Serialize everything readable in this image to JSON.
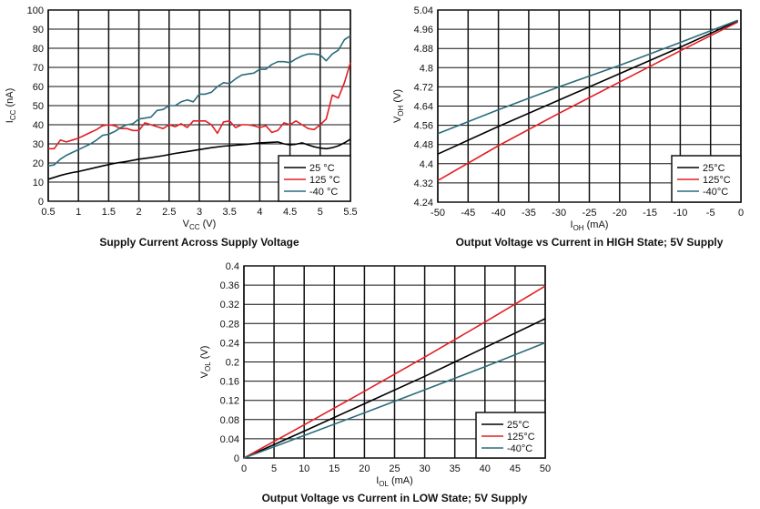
{
  "colors": {
    "25C": "#000000",
    "125C": "#e31e24",
    "-40C": "#2b6c7b"
  },
  "chart_data": [
    {
      "type": "line",
      "title": "Supply Current Across Supply Voltage",
      "xlabel": {
        "main": "V",
        "sub": "CC",
        "unit": " (V)"
      },
      "ylabel": {
        "main": "I",
        "sub": "CC",
        "unit": " (nA)"
      },
      "xlim": [
        0.5,
        5.5
      ],
      "ylim": [
        0,
        100
      ],
      "xticks": [
        "0.5",
        "1",
        "1.5",
        "2",
        "2.5",
        "3",
        "3.5",
        "4",
        "4.5",
        "5",
        "5.5"
      ],
      "yticks": [
        "0",
        "10",
        "20",
        "30",
        "40",
        "50",
        "60",
        "70",
        "80",
        "90",
        "100"
      ],
      "grid": true,
      "legend": "bottom-right",
      "series": [
        {
          "name": "25 °C",
          "color": "#000000",
          "x": [
            0.5,
            0.6,
            0.7,
            0.8,
            0.9,
            1.0,
            1.2,
            1.4,
            1.6,
            1.8,
            2.0,
            2.2,
            2.4,
            2.6,
            2.8,
            3.0,
            3.2,
            3.4,
            3.6,
            3.8,
            4.0,
            4.2,
            4.3,
            4.4,
            4.5,
            4.6,
            4.7,
            4.8,
            4.9,
            5.0,
            5.1,
            5.2,
            5.3,
            5.4,
            5.5
          ],
          "y": [
            11.5,
            12.5,
            13.5,
            14.3,
            15,
            15.5,
            17,
            18.5,
            19.8,
            20.8,
            22,
            22.8,
            23.8,
            25,
            26,
            27,
            28,
            28.8,
            29.3,
            29.8,
            30.5,
            30.8,
            31,
            30,
            29.5,
            29.8,
            30.5,
            29.5,
            28.5,
            27.8,
            27.5,
            28,
            29,
            30.5,
            32.5
          ]
        },
        {
          "name": "125 °C",
          "color": "#e31e24",
          "x": [
            0.5,
            0.6,
            0.7,
            0.8,
            0.9,
            1.0,
            1.1,
            1.2,
            1.3,
            1.4,
            1.5,
            1.6,
            1.7,
            1.8,
            1.9,
            2.0,
            2.1,
            2.2,
            2.3,
            2.4,
            2.5,
            2.6,
            2.7,
            2.8,
            2.9,
            3.0,
            3.1,
            3.2,
            3.3,
            3.4,
            3.5,
            3.6,
            3.7,
            3.8,
            3.9,
            4.0,
            4.1,
            4.2,
            4.3,
            4.4,
            4.5,
            4.6,
            4.7,
            4.8,
            4.9,
            5.0,
            5.1,
            5.2,
            5.3,
            5.4,
            5.5
          ],
          "y": [
            27.5,
            27.5,
            32,
            31,
            32,
            33,
            34.5,
            36,
            37.5,
            39.5,
            40,
            39.5,
            38,
            38,
            37,
            37,
            41,
            40,
            39,
            38,
            40,
            39,
            40.5,
            38.5,
            42,
            42,
            42,
            40,
            35.5,
            41.5,
            42,
            38.5,
            40,
            40,
            39.5,
            38.5,
            39.5,
            36,
            37,
            41,
            40,
            42,
            40,
            38,
            37.5,
            40,
            43,
            55.5,
            54,
            62,
            72.5
          ]
        },
        {
          "name": "-40 °C",
          "color": "#2b6c7b",
          "x": [
            0.5,
            0.6,
            0.7,
            0.8,
            0.9,
            1.0,
            1.1,
            1.2,
            1.3,
            1.4,
            1.5,
            1.6,
            1.7,
            1.8,
            1.9,
            2.0,
            2.1,
            2.2,
            2.3,
            2.4,
            2.5,
            2.6,
            2.7,
            2.8,
            2.9,
            3.0,
            3.1,
            3.2,
            3.3,
            3.4,
            3.5,
            3.6,
            3.7,
            3.8,
            3.9,
            4.0,
            4.1,
            4.2,
            4.3,
            4.4,
            4.5,
            4.6,
            4.7,
            4.8,
            4.9,
            5.0,
            5.1,
            5.2,
            5.3,
            5.4,
            5.5
          ],
          "y": [
            18.5,
            19,
            22,
            24,
            25.5,
            27,
            28.5,
            30,
            32,
            34.5,
            35,
            36.5,
            38.5,
            40,
            40.5,
            43,
            43.5,
            44,
            47.5,
            48,
            50,
            50,
            52,
            53,
            52,
            56,
            56,
            57,
            60,
            62,
            61.5,
            64,
            66,
            66.5,
            67,
            69,
            69,
            71.5,
            73,
            73,
            72.5,
            74.5,
            76,
            77,
            77,
            76.5,
            73.5,
            77,
            79,
            84.5,
            86.5
          ]
        }
      ]
    },
    {
      "type": "line",
      "title": "Output Voltage vs Current in HIGH State; 5V Supply",
      "xlabel": {
        "main": "I",
        "sub": "OH",
        "unit": " (mA)"
      },
      "ylabel": {
        "main": "V",
        "sub": "OH",
        "unit": " (V)"
      },
      "xlim": [
        -50,
        0
      ],
      "ylim": [
        4.24,
        5.04
      ],
      "xticks": [
        "-50",
        "-45",
        "-40",
        "-35",
        "-30",
        "-25",
        "-20",
        "-15",
        "-10",
        "-5",
        "0"
      ],
      "yticks": [
        "4.24",
        "4.32",
        "4.4",
        "4.48",
        "4.56",
        "4.64",
        "4.72",
        "4.8",
        "4.88",
        "4.96",
        "5.04"
      ],
      "grid": true,
      "legend": "bottom-right",
      "series": [
        {
          "name": "25°C",
          "color": "#000000",
          "x": [
            -50,
            -40,
            -30,
            -20,
            -10,
            -0.5
          ],
          "y": [
            4.44,
            4.555,
            4.665,
            4.775,
            4.885,
            4.995
          ]
        },
        {
          "name": "125°C",
          "color": "#e31e24",
          "x": [
            -50,
            -40,
            -30,
            -20,
            -10,
            -0.5
          ],
          "y": [
            4.33,
            4.475,
            4.61,
            4.74,
            4.87,
            4.99
          ]
        },
        {
          "name": "-40°C",
          "color": "#2b6c7b",
          "x": [
            -50,
            -40,
            -30,
            -20,
            -10,
            -0.5
          ],
          "y": [
            4.525,
            4.625,
            4.72,
            4.81,
            4.905,
            4.997
          ]
        }
      ]
    },
    {
      "type": "line",
      "title": "Output Voltage vs Current in LOW State; 5V Supply",
      "xlabel": {
        "main": "I",
        "sub": "OL",
        "unit": " (mA)"
      },
      "ylabel": {
        "main": "V",
        "sub": "OL",
        "unit": " (V)"
      },
      "xlim": [
        0,
        50
      ],
      "ylim": [
        0,
        0.4
      ],
      "xticks": [
        "0",
        "5",
        "10",
        "15",
        "20",
        "25",
        "30",
        "35",
        "40",
        "45",
        "50"
      ],
      "yticks": [
        "0",
        "0.04",
        "0.08",
        "0.12",
        "0.16",
        "0.2",
        "0.24",
        "0.28",
        "0.32",
        "0.36",
        "0.4"
      ],
      "grid": true,
      "legend": "bottom-right",
      "series": [
        {
          "name": "25°C",
          "color": "#000000",
          "x": [
            0,
            10,
            20,
            30,
            40,
            50
          ],
          "y": [
            0,
            0.056,
            0.113,
            0.17,
            0.23,
            0.29
          ]
        },
        {
          "name": "125°C",
          "color": "#e31e24",
          "x": [
            0,
            10,
            20,
            30,
            40,
            50
          ],
          "y": [
            0,
            0.069,
            0.139,
            0.21,
            0.283,
            0.358
          ]
        },
        {
          "name": "-40°C",
          "color": "#2b6c7b",
          "x": [
            0,
            10,
            20,
            30,
            40,
            50
          ],
          "y": [
            0,
            0.047,
            0.094,
            0.142,
            0.19,
            0.24
          ]
        }
      ]
    }
  ]
}
